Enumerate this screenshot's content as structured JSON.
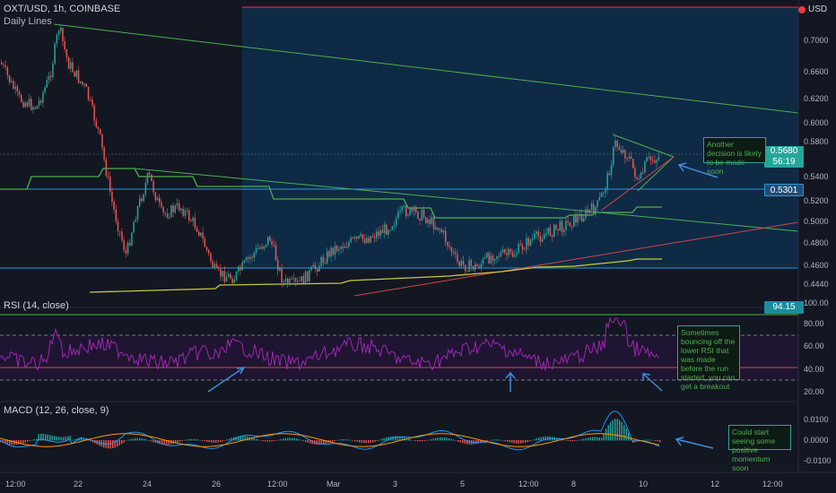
{
  "header": {
    "symbol": "OXT/USD, 1h, COINBASE",
    "indicator": "Daily Lines",
    "currency": "USD"
  },
  "price_scale": {
    "ticks": [
      "0.7000",
      "0.6600",
      "0.6200",
      "0.6000",
      "0.5800",
      "0.5400",
      "0.5200",
      "0.5000",
      "0.4800",
      "0.4600",
      "0.4440",
      "100.00"
    ],
    "current_price": "0.5680",
    "countdown": "56:19",
    "level_price": "0.5301"
  },
  "rsi": {
    "label": "RSI (14, close)",
    "value": "94.15",
    "ticks": [
      "80.00",
      "60.00",
      "40.00",
      "20.00"
    ]
  },
  "macd": {
    "label": "MACD (12, 26, close, 9)",
    "ticks": [
      "0.0100",
      "0.0000",
      "-0.0100"
    ]
  },
  "time_axis": {
    "labels": [
      "12:00",
      "22",
      "24",
      "26",
      "12:00",
      "Mar",
      "3",
      "5",
      "12:00",
      "8",
      "10",
      "12",
      "12:00"
    ]
  },
  "notes": {
    "decision": "Another decision is likely to be made soon",
    "rsi_note": "Sometimes bouncing off the lower RSI that was made before the run started, you can get a breakout",
    "macd_note": "Could start seeing some positive momentum soon"
  },
  "colors": {
    "background": "#131722",
    "range_fill": "#0f2a45",
    "up": "#26a69a",
    "down": "#ef5350",
    "daily_line": "#4caf50",
    "yellow_line": "#c8c83c",
    "rsi_line": "#9c27b0",
    "macd_line": "#2196f3",
    "signal_line": "#ff9800",
    "arrow": "#3d8fd9"
  }
}
